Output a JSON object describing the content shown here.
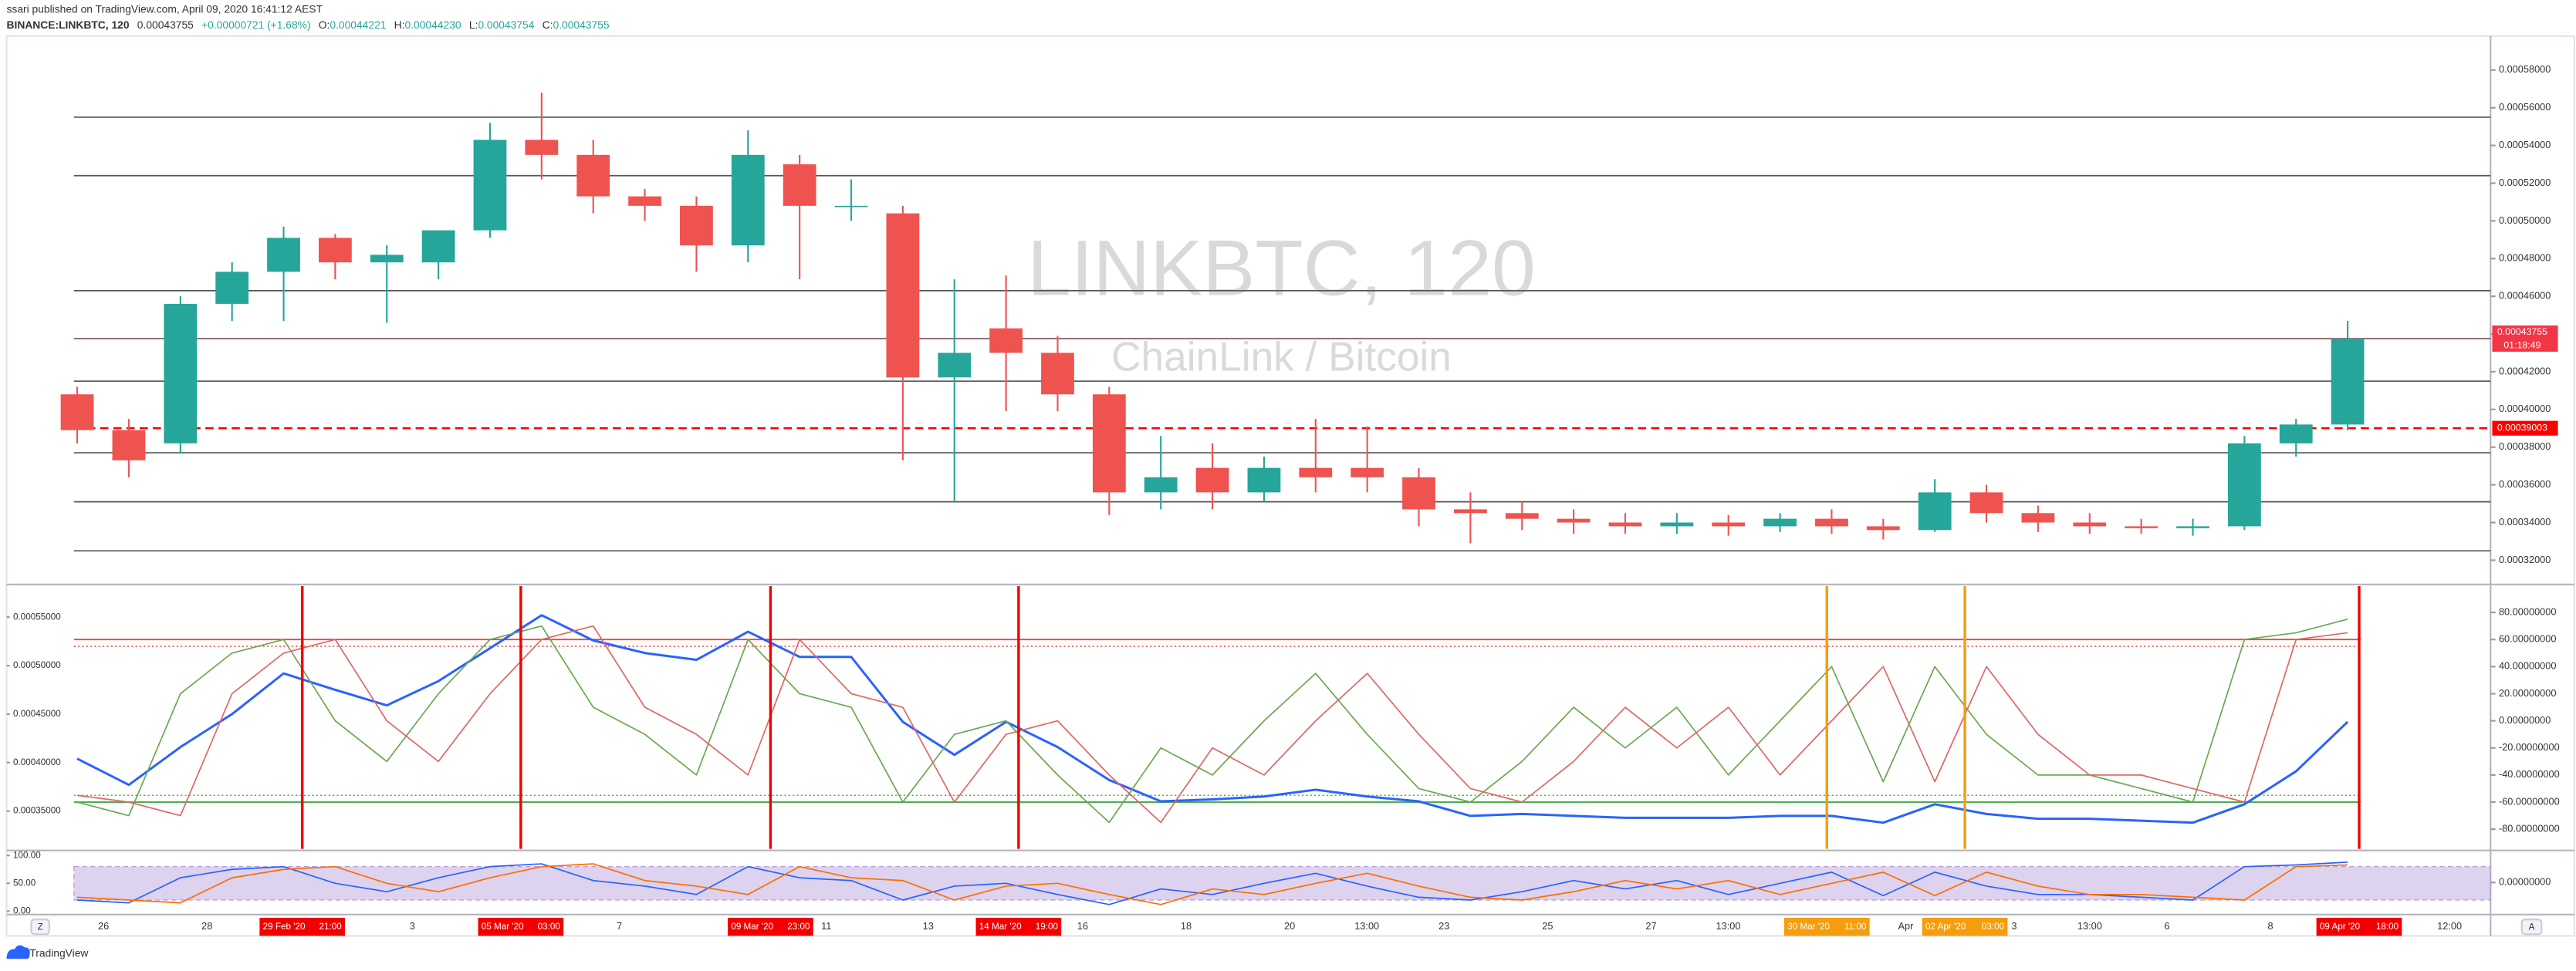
{
  "header": {
    "author_line": "ssari published on TradingView.com, April 09, 2020 16:41:12 AEST",
    "symbol": "BINANCE:LINKBTC, 120",
    "last": "0.00043755",
    "change": "+0.00000721 (+1.68%)",
    "o_label": "O:",
    "o": "0.00044221",
    "h_label": "H:",
    "h": "0.00044230",
    "l_label": "L:",
    "l": "0.00043754",
    "c_label": "C:",
    "c": "0.00043755"
  },
  "chart_data": [
    {
      "type": "candlestick",
      "watermark": "LINKBTC, 120",
      "watermark_sub": "ChainLink / Bitcoin",
      "ylim": [
        0.000308,
        0.000598
      ],
      "yticks": [
        {
          "value": 0.00032,
          "label": "0.00032000"
        },
        {
          "value": 0.00034,
          "label": "0.00034000"
        },
        {
          "value": 0.00036,
          "label": "0.00036000"
        },
        {
          "value": 0.00038,
          "label": "0.00038000"
        },
        {
          "value": 0.0004,
          "label": "0.00040000"
        },
        {
          "value": 0.00042,
          "label": "0.00042000"
        },
        {
          "value": 0.00044,
          "label": "0.00044000"
        },
        {
          "value": 0.00046,
          "label": "0.00046000"
        },
        {
          "value": 0.00048,
          "label": "0.00048000"
        },
        {
          "value": 0.0005,
          "label": "0.00050000"
        },
        {
          "value": 0.00052,
          "label": "0.00052000"
        },
        {
          "value": 0.00054,
          "label": "0.00054000"
        },
        {
          "value": 0.00056,
          "label": "0.00056000"
        },
        {
          "value": 0.00058,
          "label": "0.00058000"
        }
      ],
      "up_color": "#26a69a",
      "down_color": "#ef5350",
      "open": [
        0.000408,
        0.000389,
        0.000382,
        0.000456,
        0.000473,
        0.000491,
        0.000478,
        0.000478,
        0.000495,
        0.000543,
        0.000535,
        0.000513,
        0.000508,
        0.000487,
        0.00053,
        0.000508,
        0.000504,
        0.000417,
        0.000443,
        0.00043,
        0.000408,
        0.000356,
        0.000369,
        0.000356,
        0.000369,
        0.000369,
        0.000364,
        0.000347,
        0.000345,
        0.000342,
        0.00034,
        0.000338,
        0.00034,
        0.000338,
        0.000342,
        0.000338,
        0.000336,
        0.000356,
        0.000345,
        0.00034,
        0.000338,
        0.000337,
        0.000338,
        0.000382,
        0.000392
      ],
      "high": [
        0.000412,
        0.000395,
        0.00046,
        0.000478,
        0.000497,
        0.000493,
        0.000487,
        0.000495,
        0.000552,
        0.000568,
        0.000543,
        0.000517,
        0.000513,
        0.000548,
        0.000535,
        0.000522,
        0.000508,
        0.000469,
        0.000471,
        0.000439,
        0.000412,
        0.000386,
        0.000382,
        0.000375,
        0.000395,
        0.000391,
        0.000369,
        0.000356,
        0.000351,
        0.000347,
        0.000345,
        0.000345,
        0.000344,
        0.000345,
        0.000347,
        0.000342,
        0.000363,
        0.00036,
        0.000349,
        0.000345,
        0.000342,
        0.000342,
        0.000386,
        0.000395,
        0.000447
      ],
      "low": [
        0.000382,
        0.000364,
        0.000377,
        0.000447,
        0.000447,
        0.000469,
        0.000446,
        0.000469,
        0.000491,
        0.000522,
        0.000504,
        0.0005,
        0.000473,
        0.000478,
        0.000469,
        0.0005,
        0.000373,
        0.000351,
        0.000399,
        0.000399,
        0.000344,
        0.000347,
        0.000347,
        0.000351,
        0.000356,
        0.000356,
        0.000338,
        0.000329,
        0.000336,
        0.000334,
        0.000334,
        0.000334,
        0.000333,
        0.000335,
        0.000334,
        0.000331,
        0.000335,
        0.00034,
        0.000335,
        0.000334,
        0.000334,
        0.000333,
        0.000336,
        0.000375,
        0.000389
      ],
      "close": [
        0.000389,
        0.000373,
        0.000456,
        0.000473,
        0.000491,
        0.000478,
        0.000482,
        0.000495,
        0.000543,
        0.000535,
        0.000513,
        0.000508,
        0.000487,
        0.000535,
        0.000508,
        0.000508,
        0.000417,
        0.00043,
        0.00043,
        0.000408,
        0.000356,
        0.000364,
        0.000356,
        0.000369,
        0.000364,
        0.000364,
        0.000347,
        0.000345,
        0.000342,
        0.00034,
        0.000338,
        0.00034,
        0.000338,
        0.000342,
        0.000338,
        0.000336,
        0.000356,
        0.000345,
        0.00034,
        0.000338,
        0.000337,
        0.000338,
        0.000382,
        0.000392,
        0.00043755
      ],
      "levels": [
        0.000555,
        0.000524,
        0.000463,
        0.000415,
        0.000377,
        0.000351,
        0.000325
      ],
      "levels_color": "#555555",
      "last_price": 0.00043755,
      "countdown": "01:18:49",
      "last_color": "#f23645",
      "alert_level": 0.00039003,
      "alert_color": "#ff0000"
    },
    {
      "type": "line",
      "ylim": [
        0.000311,
        0.000582
      ],
      "yticks": [
        {
          "value": 0.00055,
          "label": "0.00055000"
        },
        {
          "value": 0.0005,
          "label": "0.00050000"
        },
        {
          "value": 0.00045,
          "label": "0.00045000"
        },
        {
          "value": 0.0004,
          "label": "0.00040000"
        },
        {
          "value": 0.00035,
          "label": "0.00035000"
        }
      ],
      "y2lim": [
        -94.5,
        99.4
      ],
      "y2ticks": [
        {
          "value": 80,
          "label": "80.00000000"
        },
        {
          "value": 60,
          "label": "60.00000000"
        },
        {
          "value": 40,
          "label": "40.00000000"
        },
        {
          "value": 20,
          "label": "20.00000000"
        },
        {
          "value": 0,
          "label": "0.00000000"
        },
        {
          "value": -20,
          "label": "-20.00000000"
        },
        {
          "value": -40,
          "label": "-40.00000000"
        },
        {
          "value": -60,
          "label": "-60.00000000"
        },
        {
          "value": -80,
          "label": "-80.00000000"
        }
      ],
      "series": [
        {
          "color": "#2962ff",
          "values": [
            0.000404,
            0.000377,
            0.000416,
            0.00045,
            0.000492,
            0.000475,
            0.000459,
            0.000484,
            0.000518,
            0.000552,
            0.000526,
            0.000513,
            0.000506,
            0.000535,
            0.000509,
            0.000509,
            0.000442,
            0.000408,
            0.000442,
            0.000416,
            0.000382,
            0.00036,
            0.000362,
            0.000365,
            0.000372,
            0.000365,
            0.00036,
            0.000345,
            0.000347,
            0.000345,
            0.000343,
            0.000343,
            0.000343,
            0.000345,
            0.000345,
            0.000338,
            0.000357,
            0.000347,
            0.000342,
            0.000342,
            0.00034,
            0.000338,
            0.000357,
            0.000391,
            0.000442
          ]
        },
        {
          "color": "#6aa84f",
          "axis": "y2",
          "values": [
            -60,
            -70,
            20,
            50,
            60,
            0,
            -30,
            20,
            60,
            70,
            10,
            -10,
            -40,
            60,
            20,
            10,
            -60,
            -10,
            0,
            -40,
            -75,
            -20,
            -40,
            0,
            35,
            -10,
            -50,
            -60,
            -30,
            10,
            -20,
            10,
            -40,
            0,
            40,
            -45,
            40,
            -10,
            -40,
            -40,
            -50,
            -60,
            60,
            65,
            75
          ]
        },
        {
          "color": "#e06666",
          "axis": "y2",
          "values": [
            -55,
            -60,
            -70,
            20,
            50,
            60,
            0,
            -30,
            20,
            60,
            70,
            10,
            -10,
            -40,
            60,
            20,
            10,
            -60,
            -10,
            0,
            -40,
            -75,
            -20,
            -40,
            0,
            35,
            -10,
            -50,
            -60,
            -30,
            10,
            -20,
            10,
            -40,
            0,
            40,
            -45,
            40,
            -10,
            -40,
            -40,
            -50,
            -60,
            60,
            65
          ]
        }
      ],
      "levels": [
        {
          "value": 60,
          "color": "#f44336",
          "style": "solid"
        },
        {
          "value": 55,
          "color": "#f44336",
          "style": "dotted"
        },
        {
          "value": -55,
          "color": "#4caf50",
          "style": "dotted"
        },
        {
          "value": -60,
          "color": "#4caf50",
          "style": "solid"
        }
      ]
    },
    {
      "type": "line",
      "ylim": [
        -3,
        106
      ],
      "yticks": [
        {
          "value": 100,
          "label": "100.00"
        },
        {
          "value": 50,
          "label": "50.00"
        },
        {
          "value": 0,
          "label": "0.00"
        }
      ],
      "y2lim": [
        -1,
        1
      ],
      "y2ticks": [
        {
          "value": 0,
          "label": "0.00000000"
        }
      ],
      "band": [
        20,
        80
      ],
      "band_color": "#b39ddb",
      "series": [
        {
          "color": "#2962ff",
          "values": [
            20,
            15,
            60,
            75,
            80,
            50,
            35,
            60,
            80,
            85,
            55,
            45,
            30,
            80,
            60,
            55,
            20,
            45,
            50,
            30,
            12,
            40,
            30,
            50,
            68,
            45,
            25,
            20,
            35,
            55,
            40,
            55,
            30,
            50,
            70,
            28,
            70,
            45,
            30,
            30,
            25,
            20,
            80,
            83,
            88
          ]
        },
        {
          "color": "#ff6d00",
          "values": [
            25,
            20,
            15,
            60,
            75,
            80,
            50,
            35,
            60,
            80,
            85,
            55,
            45,
            30,
            80,
            60,
            55,
            20,
            45,
            50,
            30,
            12,
            40,
            30,
            50,
            68,
            45,
            25,
            20,
            35,
            55,
            40,
            55,
            30,
            50,
            70,
            28,
            70,
            45,
            30,
            30,
            25,
            20,
            80,
            83
          ]
        }
      ]
    }
  ],
  "time_axis": {
    "labels": [
      "26",
      "28",
      "3",
      "7",
      "11",
      "13",
      "16",
      "18",
      "20",
      "13:00",
      "23",
      "25",
      "27",
      "13:00",
      "Apr",
      "3",
      "13:00",
      "6",
      "8",
      "12:00"
    ],
    "markers": [
      {
        "date": "29 Feb '20",
        "time": "21:00",
        "color": "#f20000"
      },
      {
        "date": "05 Mar '20",
        "time": "03:00",
        "color": "#f20000"
      },
      {
        "date": "09 Mar '20",
        "time": "23:00",
        "color": "#f20000"
      },
      {
        "date": "14 Mar '20",
        "time": "19:00",
        "color": "#f20000"
      },
      {
        "date": "30 Mar '20",
        "time": "11:00",
        "color": "#f59d0d"
      },
      {
        "date": "02 Apr '20",
        "time": "03:00",
        "color": "#f59d0d"
      },
      {
        "date": "09 Apr '20",
        "time": "18:00",
        "color": "#f20000"
      }
    ]
  },
  "ui": {
    "zoom_button": "Z",
    "auto_button": "A"
  },
  "footer": "TradingView"
}
